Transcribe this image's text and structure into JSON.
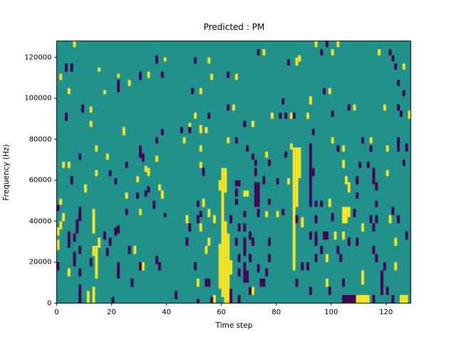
{
  "chart_data": {
    "type": "heatmap",
    "title": "Predicted : PM",
    "xlabel": "Time step",
    "ylabel": "Frequency (Hz)",
    "x_ticks": [
      0,
      20,
      40,
      60,
      80,
      100,
      120
    ],
    "y_ticks": [
      0,
      20000,
      40000,
      60000,
      80000,
      100000,
      120000
    ],
    "x_range": [
      0,
      129
    ],
    "y_range": [
      0,
      128000
    ],
    "n_time_steps": 129,
    "n_freq_bins": 128,
    "hz_per_bin": 1000,
    "grid": false,
    "legend": false,
    "colors": {
      "background": "#21918c",
      "high": "#fde725",
      "low": "#440154",
      "axis": "#000000",
      "text": "#000000"
    },
    "cell_format": "[time_step, freq_bin_start, freq_bin_end]",
    "cells_high": [
      [
        6,
        125,
        127
      ],
      [
        1,
        109,
        111
      ],
      [
        15,
        113,
        114
      ],
      [
        39,
        118,
        119
      ],
      [
        33,
        110,
        112
      ],
      [
        22,
        110,
        111
      ],
      [
        26,
        106,
        108
      ],
      [
        4,
        102,
        104
      ],
      [
        17,
        102,
        103
      ],
      [
        12,
        93,
        95
      ],
      [
        12,
        86,
        88
      ],
      [
        24,
        82,
        85
      ],
      [
        14,
        74,
        76
      ],
      [
        18,
        70,
        72
      ],
      [
        36,
        69,
        71
      ],
      [
        2,
        66,
        68
      ],
      [
        4,
        66,
        68
      ],
      [
        32,
        64,
        66
      ],
      [
        14,
        62,
        64
      ],
      [
        33,
        62,
        65
      ],
      [
        29,
        59,
        61
      ],
      [
        10,
        54,
        57
      ],
      [
        37,
        55,
        57
      ],
      [
        38,
        51,
        54
      ],
      [
        25,
        51,
        53
      ],
      [
        1,
        48,
        50
      ],
      [
        30,
        43,
        45
      ],
      [
        13,
        34,
        45
      ],
      [
        2,
        40,
        43
      ],
      [
        1,
        36,
        39
      ],
      [
        0,
        33,
        36
      ],
      [
        0,
        26,
        30
      ],
      [
        15,
        27,
        31
      ],
      [
        14,
        23,
        27
      ],
      [
        13,
        23,
        27
      ],
      [
        14,
        12,
        23
      ],
      [
        4,
        13,
        16
      ],
      [
        28,
        24,
        27
      ],
      [
        31,
        16,
        19
      ],
      [
        11,
        0,
        5
      ],
      [
        13,
        0,
        7
      ],
      [
        48,
        86,
        87
      ],
      [
        52,
        83,
        86
      ],
      [
        54,
        83,
        85
      ],
      [
        46,
        78,
        80
      ],
      [
        62,
        78,
        80
      ],
      [
        55,
        117,
        119
      ],
      [
        75,
        121,
        123
      ],
      [
        56,
        109,
        111
      ],
      [
        65,
        109,
        111
      ],
      [
        52,
        102,
        104
      ],
      [
        52,
        74,
        76
      ],
      [
        85,
        75,
        77
      ],
      [
        76,
        71,
        73
      ],
      [
        64,
        94,
        96
      ],
      [
        50,
        90,
        92
      ],
      [
        78,
        90,
        92
      ],
      [
        85,
        90,
        92
      ],
      [
        71,
        86,
        88
      ],
      [
        52,
        66,
        68
      ],
      [
        68,
        52,
        54
      ],
      [
        69,
        52,
        54
      ],
      [
        84,
        58,
        60
      ],
      [
        53,
        47,
        50
      ],
      [
        55,
        42,
        45
      ],
      [
        76,
        42,
        44
      ],
      [
        80,
        42,
        44
      ],
      [
        47,
        39,
        42
      ],
      [
        52,
        35,
        38
      ],
      [
        57,
        39,
        42
      ],
      [
        55,
        28,
        31
      ],
      [
        54,
        24,
        27
      ],
      [
        51,
        8,
        11
      ],
      [
        71,
        4,
        7
      ],
      [
        57,
        0,
        3
      ],
      [
        59,
        7,
        28
      ],
      [
        59,
        55,
        59
      ],
      [
        60,
        3,
        65
      ],
      [
        61,
        0,
        39
      ],
      [
        61,
        54,
        65
      ],
      [
        62,
        0,
        33
      ],
      [
        63,
        14,
        20
      ],
      [
        94,
        125,
        127
      ],
      [
        102,
        125,
        127
      ],
      [
        100,
        121,
        123
      ],
      [
        117,
        121,
        123
      ],
      [
        88,
        118,
        120
      ],
      [
        87,
        116,
        119
      ],
      [
        126,
        114,
        116
      ],
      [
        99,
        102,
        104
      ],
      [
        92,
        97,
        100
      ],
      [
        108,
        94,
        96
      ],
      [
        119,
        94,
        96
      ],
      [
        91,
        90,
        92
      ],
      [
        128,
        90,
        93
      ],
      [
        86,
        16,
        75
      ],
      [
        87,
        47,
        75
      ],
      [
        88,
        61,
        75
      ],
      [
        100,
        78,
        80
      ],
      [
        104,
        74,
        76
      ],
      [
        104,
        66,
        69
      ],
      [
        114,
        78,
        80
      ],
      [
        120,
        74,
        76
      ],
      [
        120,
        62,
        64
      ],
      [
        105,
        58,
        61
      ],
      [
        106,
        54,
        58
      ],
      [
        99,
        47,
        50
      ],
      [
        104,
        42,
        46
      ],
      [
        105,
        42,
        46
      ],
      [
        106,
        42,
        46
      ],
      [
        104,
        39,
        42
      ],
      [
        105,
        39,
        42
      ],
      [
        89,
        37,
        41
      ],
      [
        111,
        35,
        38
      ],
      [
        101,
        31,
        34
      ],
      [
        104,
        31,
        34
      ],
      [
        123,
        28,
        31
      ],
      [
        98,
        20,
        23
      ],
      [
        123,
        16,
        19
      ],
      [
        111,
        9,
        15
      ],
      [
        98,
        8,
        11
      ],
      [
        121,
        39,
        42
      ],
      [
        109,
        0,
        3
      ],
      [
        110,
        0,
        3
      ],
      [
        111,
        0,
        3
      ],
      [
        112,
        0,
        3
      ],
      [
        113,
        0,
        3
      ],
      [
        125,
        0,
        3
      ],
      [
        126,
        0,
        3
      ],
      [
        127,
        0,
        3
      ]
    ],
    "cells_low": [
      [
        3,
        113,
        116
      ],
      [
        5,
        113,
        116
      ],
      [
        36,
        117,
        120
      ],
      [
        30,
        109,
        112
      ],
      [
        38,
        110,
        112
      ],
      [
        22,
        103,
        108
      ],
      [
        9,
        93,
        96
      ],
      [
        3,
        89,
        92
      ],
      [
        38,
        82,
        84
      ],
      [
        36,
        78,
        80
      ],
      [
        30,
        71,
        76
      ],
      [
        8,
        70,
        72
      ],
      [
        31,
        69,
        72
      ],
      [
        25,
        66,
        68
      ],
      [
        19,
        62,
        64
      ],
      [
        5,
        58,
        61
      ],
      [
        21,
        58,
        60
      ],
      [
        33,
        54,
        56
      ],
      [
        29,
        51,
        53
      ],
      [
        32,
        52,
        54
      ],
      [
        0,
        45,
        47
      ],
      [
        35,
        46,
        49
      ],
      [
        8,
        44,
        46
      ],
      [
        25,
        43,
        45
      ],
      [
        39,
        42,
        43
      ],
      [
        8,
        40,
        43
      ],
      [
        7,
        34,
        40
      ],
      [
        4,
        27,
        34
      ],
      [
        6,
        30,
        33
      ],
      [
        17,
        31,
        34
      ],
      [
        19,
        28,
        31
      ],
      [
        21,
        33,
        36
      ],
      [
        22,
        34,
        37
      ],
      [
        8,
        24,
        27
      ],
      [
        18,
        23,
        26
      ],
      [
        6,
        18,
        24
      ],
      [
        12,
        18,
        21
      ],
      [
        8,
        13,
        16
      ],
      [
        22,
        12,
        19
      ],
      [
        26,
        24,
        27
      ],
      [
        30,
        16,
        19
      ],
      [
        36,
        19,
        22
      ],
      [
        37,
        16,
        19
      ],
      [
        27,
        8,
        11
      ],
      [
        8,
        0,
        8
      ],
      [
        20,
        0,
        2
      ],
      [
        0,
        16,
        19
      ],
      [
        45,
        83,
        85
      ],
      [
        48,
        83,
        85
      ],
      [
        50,
        117,
        119
      ],
      [
        73,
        121,
        123
      ],
      [
        84,
        116,
        118
      ],
      [
        62,
        110,
        112
      ],
      [
        49,
        102,
        104
      ],
      [
        62,
        94,
        96
      ],
      [
        82,
        97,
        99
      ],
      [
        55,
        90,
        92
      ],
      [
        81,
        90,
        92
      ],
      [
        83,
        90,
        92
      ],
      [
        68,
        86,
        88
      ],
      [
        65,
        78,
        80
      ],
      [
        69,
        74,
        76
      ],
      [
        71,
        70,
        72
      ],
      [
        83,
        71,
        73
      ],
      [
        53,
        62,
        65
      ],
      [
        72,
        67,
        69
      ],
      [
        72,
        62,
        65
      ],
      [
        77,
        67,
        69
      ],
      [
        75,
        58,
        61
      ],
      [
        80,
        58,
        60
      ],
      [
        65,
        57,
        59
      ],
      [
        66,
        57,
        59
      ],
      [
        65,
        52,
        55
      ],
      [
        72,
        47,
        58
      ],
      [
        73,
        47,
        58
      ],
      [
        65,
        48,
        50
      ],
      [
        51,
        47,
        49
      ],
      [
        77,
        48,
        50
      ],
      [
        52,
        42,
        44
      ],
      [
        68,
        42,
        44
      ],
      [
        73,
        42,
        45
      ],
      [
        82,
        43,
        45
      ],
      [
        48,
        35,
        38
      ],
      [
        51,
        39,
        42
      ],
      [
        63,
        39,
        42
      ],
      [
        66,
        35,
        38
      ],
      [
        68,
        35,
        38
      ],
      [
        70,
        31,
        34
      ],
      [
        65,
        28,
        31
      ],
      [
        71,
        28,
        31
      ],
      [
        68,
        23,
        31
      ],
      [
        66,
        20,
        23
      ],
      [
        70,
        20,
        23
      ],
      [
        68,
        16,
        19
      ],
      [
        68,
        10,
        15
      ],
      [
        69,
        10,
        15
      ],
      [
        73,
        15,
        18
      ],
      [
        77,
        28,
        31
      ],
      [
        77,
        20,
        23
      ],
      [
        76,
        13,
        16
      ],
      [
        74,
        8,
        11
      ],
      [
        75,
        8,
        11
      ],
      [
        70,
        4,
        7
      ],
      [
        66,
        0,
        3
      ],
      [
        63,
        0,
        3
      ],
      [
        51,
        0,
        1
      ],
      [
        43,
        2,
        5
      ],
      [
        47,
        28,
        31
      ],
      [
        50,
        16,
        19
      ],
      [
        54,
        8,
        11
      ],
      [
        55,
        8,
        11
      ],
      [
        56,
        0,
        2
      ],
      [
        66,
        13,
        16
      ],
      [
        63,
        4,
        6
      ],
      [
        98,
        125,
        127
      ],
      [
        96,
        121,
        123
      ],
      [
        121,
        121,
        123
      ],
      [
        122,
        118,
        120
      ],
      [
        123,
        114,
        116
      ],
      [
        124,
        106,
        108
      ],
      [
        97,
        102,
        104
      ],
      [
        126,
        101,
        103
      ],
      [
        106,
        94,
        96
      ],
      [
        124,
        94,
        96
      ],
      [
        86,
        90,
        92
      ],
      [
        125,
        91,
        93
      ],
      [
        100,
        91,
        93
      ],
      [
        93,
        82,
        84
      ],
      [
        92,
        47,
        77
      ],
      [
        102,
        74,
        76
      ],
      [
        111,
        78,
        80
      ],
      [
        114,
        74,
        76
      ],
      [
        110,
        66,
        68
      ],
      [
        113,
        66,
        68
      ],
      [
        93,
        62,
        65
      ],
      [
        115,
        58,
        65
      ],
      [
        124,
        74,
        80
      ],
      [
        127,
        74,
        77
      ],
      [
        126,
        67,
        69
      ],
      [
        109,
        58,
        61
      ],
      [
        109,
        51,
        53
      ],
      [
        116,
        55,
        58
      ],
      [
        94,
        47,
        49
      ],
      [
        96,
        47,
        49
      ],
      [
        116,
        47,
        49
      ],
      [
        108,
        42,
        45
      ],
      [
        122,
        43,
        46
      ],
      [
        100,
        40,
        43
      ],
      [
        87,
        39,
        42
      ],
      [
        94,
        39,
        42
      ],
      [
        114,
        39,
        42
      ],
      [
        116,
        39,
        42
      ],
      [
        124,
        39,
        42
      ],
      [
        115,
        35,
        38
      ],
      [
        92,
        31,
        34
      ],
      [
        94,
        31,
        34
      ],
      [
        97,
        31,
        34
      ],
      [
        98,
        31,
        34
      ],
      [
        94,
        28,
        31
      ],
      [
        106,
        28,
        31
      ],
      [
        109,
        28,
        31
      ],
      [
        102,
        24,
        27
      ],
      [
        103,
        20,
        23
      ],
      [
        96,
        24,
        27
      ],
      [
        94,
        20,
        23
      ],
      [
        116,
        20,
        23
      ],
      [
        89,
        16,
        19
      ],
      [
        91,
        16,
        19
      ],
      [
        119,
        16,
        19
      ],
      [
        118,
        4,
        15
      ],
      [
        99,
        4,
        7
      ],
      [
        104,
        8,
        11
      ],
      [
        87,
        8,
        11
      ],
      [
        92,
        4,
        7
      ],
      [
        104,
        0,
        3
      ],
      [
        105,
        0,
        3
      ],
      [
        106,
        0,
        3
      ],
      [
        107,
        0,
        3
      ],
      [
        108,
        0,
        3
      ],
      [
        115,
        0,
        3
      ],
      [
        122,
        0,
        3
      ],
      [
        120,
        4,
        7
      ],
      [
        115,
        24,
        27
      ],
      [
        127,
        31,
        34
      ]
    ]
  }
}
